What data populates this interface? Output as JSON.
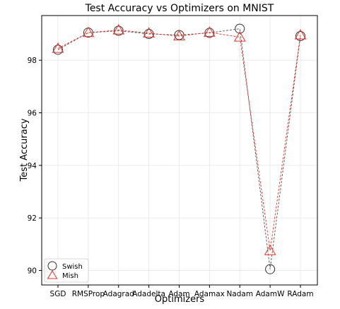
{
  "chart_data": {
    "type": "line",
    "title": "Test Accuracy vs Optimizers on MNIST",
    "xlabel": "Optimizers",
    "ylabel": "Test Accuracy",
    "categories": [
      "SGD",
      "RMSProp",
      "Adagrad",
      "Adadelta",
      "Adam",
      "Adamax",
      "Nadam",
      "AdamW",
      "RAdam"
    ],
    "ylim": [
      89.45,
      99.7
    ],
    "yticks": [
      90,
      92,
      94,
      96,
      98
    ],
    "grid": true,
    "legend_position": "bottom-left",
    "series": [
      {
        "name": "Swish",
        "marker": "circle",
        "color": "#555555",
        "values": [
          98.4,
          99.05,
          99.12,
          99.0,
          98.96,
          99.04,
          99.2,
          90.05,
          98.92
        ]
      },
      {
        "name": "Mish",
        "marker": "triangle",
        "color": "#e8322a",
        "values": [
          98.45,
          99.05,
          99.15,
          99.03,
          98.92,
          99.06,
          98.88,
          90.75,
          98.96
        ]
      }
    ]
  }
}
